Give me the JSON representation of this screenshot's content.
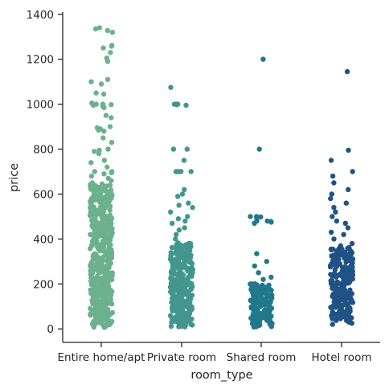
{
  "chart_data": {
    "type": "scatter",
    "subtype": "strip",
    "xlabel": "room_type",
    "ylabel": "price",
    "ylim": [
      -60,
      1410
    ],
    "yticks": [
      0,
      200,
      400,
      600,
      800,
      1000,
      1200,
      1400
    ],
    "grid": false,
    "legend": "none",
    "categories": [
      "Entire home/apt",
      "Private room",
      "Shared room",
      "Hotel room"
    ],
    "colors": [
      "#6cb18d",
      "#43968f",
      "#21788a",
      "#205286"
    ],
    "series": [
      {
        "category": "Entire home/apt",
        "dense_range": [
          10,
          640
        ],
        "values": [
          1340,
          1335,
          1320,
          1328,
          1262,
          1258,
          1250,
          1230,
          1205,
          1190,
          1110,
          1100,
          1090,
          1050,
          1045,
          1005,
          1000,
          1000,
          998,
          995,
          990,
          985,
          950,
          940,
          900,
          895,
          890,
          885,
          880,
          850,
          830,
          800,
          795,
          790,
          780,
          750,
          740,
          720,
          700,
          700,
          695,
          690,
          680,
          670,
          660,
          650,
          645
        ]
      },
      {
        "category": "Private room",
        "dense_range": [
          10,
          380
        ],
        "values": [
          1075,
          1000,
          1000,
          998,
          995,
          1000,
          800,
          800,
          750,
          700,
          700,
          700,
          700,
          700,
          620,
          600,
          590,
          560,
          550,
          540,
          520,
          500,
          490,
          480,
          470,
          450,
          440,
          420,
          400
        ]
      },
      {
        "category": "Shared room",
        "dense_range": [
          10,
          200
        ],
        "values": [
          1200,
          800,
          500,
          500,
          498,
          495,
          480,
          480,
          478,
          475,
          470,
          335,
          300,
          280,
          250,
          230,
          220
        ]
      },
      {
        "category": "Hotel room",
        "dense_range": [
          40,
          360
        ],
        "values": [
          1145,
          795,
          750,
          700,
          680,
          650,
          620,
          600,
          580,
          560,
          540,
          520,
          500,
          480,
          470,
          450,
          430,
          420,
          400,
          380,
          370,
          30,
          20,
          25
        ]
      }
    ]
  }
}
